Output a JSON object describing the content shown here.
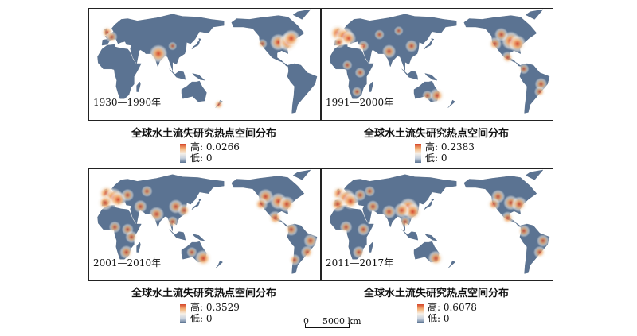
{
  "panels": [
    {
      "period": "1930—1990年",
      "title": "全球水土流失研究热点空间分布",
      "legend_high": "高: 0.0266",
      "legend_low": "低: 0",
      "hotspots": [
        {
          "lon": -2,
          "lat": 53,
          "v": 0.55
        },
        {
          "lon": 5,
          "lat": 47,
          "v": 0.45
        },
        {
          "lon": 78,
          "lat": 25,
          "v": 0.95
        },
        {
          "lon": -95,
          "lat": 40,
          "v": 0.85
        },
        {
          "lon": -80,
          "lat": 40,
          "v": 1.0
        },
        {
          "lon": -75,
          "lat": 45,
          "v": 0.9
        },
        {
          "lon": -120,
          "lat": 38,
          "v": 0.3
        },
        {
          "lon": 100,
          "lat": 35,
          "v": 0.2
        },
        {
          "lon": 172,
          "lat": -42,
          "v": 0.35
        }
      ]
    },
    {
      "period": "1991—2000年",
      "title": "全球水土流失研究热点空间分布",
      "legend_high": "高: 0.2383",
      "legend_low": "低: 0",
      "hotspots": [
        {
          "lon": -5,
          "lat": 52,
          "v": 0.9
        },
        {
          "lon": 5,
          "lat": 48,
          "v": 1.0
        },
        {
          "lon": 12,
          "lat": 45,
          "v": 0.7
        },
        {
          "lon": -3,
          "lat": 40,
          "v": 0.5
        },
        {
          "lon": 35,
          "lat": 35,
          "v": 0.4
        },
        {
          "lon": 75,
          "lat": 28,
          "v": 0.6
        },
        {
          "lon": 110,
          "lat": 35,
          "v": 0.5
        },
        {
          "lon": 30,
          "lat": 0,
          "v": 0.35
        },
        {
          "lon": 10,
          "lat": 10,
          "v": 0.3
        },
        {
          "lon": 25,
          "lat": -25,
          "v": 0.3
        },
        {
          "lon": 150,
          "lat": -30,
          "v": 0.7
        },
        {
          "lon": 135,
          "lat": -30,
          "v": 0.35
        },
        {
          "lon": -95,
          "lat": 42,
          "v": 1.0
        },
        {
          "lon": -85,
          "lat": 38,
          "v": 0.9
        },
        {
          "lon": -110,
          "lat": 50,
          "v": 0.6
        },
        {
          "lon": -120,
          "lat": 38,
          "v": 0.6
        },
        {
          "lon": -100,
          "lat": 20,
          "v": 0.5
        },
        {
          "lon": -75,
          "lat": 5,
          "v": 0.35
        },
        {
          "lon": -48,
          "lat": -15,
          "v": 0.5
        },
        {
          "lon": -50,
          "lat": -25,
          "v": 0.4
        },
        {
          "lon": 60,
          "lat": 50,
          "v": 0.3
        },
        {
          "lon": 90,
          "lat": 55,
          "v": 0.25
        }
      ]
    },
    {
      "period": "2001—2010年",
      "title": "全球水土流失研究热点空间分布",
      "legend_high": "高: 0.3529",
      "legend_low": "低: 0",
      "hotspots": [
        {
          "lon": -3,
          "lat": 52,
          "v": 0.85
        },
        {
          "lon": 8,
          "lat": 47,
          "v": 1.0
        },
        {
          "lon": 15,
          "lat": 44,
          "v": 0.85
        },
        {
          "lon": -5,
          "lat": 40,
          "v": 0.75
        },
        {
          "lon": 30,
          "lat": 50,
          "v": 0.5
        },
        {
          "lon": 50,
          "lat": 35,
          "v": 0.55
        },
        {
          "lon": 75,
          "lat": 25,
          "v": 0.7
        },
        {
          "lon": 105,
          "lat": 35,
          "v": 0.65
        },
        {
          "lon": 118,
          "lat": 30,
          "v": 0.55
        },
        {
          "lon": 100,
          "lat": 15,
          "v": 0.4
        },
        {
          "lon": 30,
          "lat": 5,
          "v": 0.45
        },
        {
          "lon": 36,
          "lat": -5,
          "v": 0.5
        },
        {
          "lon": 10,
          "lat": 8,
          "v": 0.45
        },
        {
          "lon": 28,
          "lat": -25,
          "v": 0.6
        },
        {
          "lon": 148,
          "lat": -33,
          "v": 0.85
        },
        {
          "lon": 130,
          "lat": -25,
          "v": 0.35
        },
        {
          "lon": -95,
          "lat": 42,
          "v": 0.85
        },
        {
          "lon": -82,
          "lat": 38,
          "v": 0.8
        },
        {
          "lon": -115,
          "lat": 48,
          "v": 0.75
        },
        {
          "lon": -122,
          "lat": 38,
          "v": 0.6
        },
        {
          "lon": -100,
          "lat": 20,
          "v": 0.65
        },
        {
          "lon": -75,
          "lat": 5,
          "v": 0.55
        },
        {
          "lon": -45,
          "lat": -10,
          "v": 0.6
        },
        {
          "lon": -50,
          "lat": -25,
          "v": 0.55
        },
        {
          "lon": -70,
          "lat": -35,
          "v": 0.45
        },
        {
          "lon": 60,
          "lat": 55,
          "v": 0.4
        }
      ]
    },
    {
      "period": "2011—2017年",
      "title": "全球水土流失研究热点空间分布",
      "legend_high": "高: 0.6078",
      "legend_low": "低: 0",
      "hotspots": [
        {
          "lon": -3,
          "lat": 52,
          "v": 0.75
        },
        {
          "lon": 8,
          "lat": 46,
          "v": 1.0
        },
        {
          "lon": 15,
          "lat": 42,
          "v": 0.85
        },
        {
          "lon": -5,
          "lat": 38,
          "v": 0.75
        },
        {
          "lon": 30,
          "lat": 50,
          "v": 0.45
        },
        {
          "lon": 50,
          "lat": 35,
          "v": 0.5
        },
        {
          "lon": 75,
          "lat": 28,
          "v": 0.6
        },
        {
          "lon": 105,
          "lat": 34,
          "v": 1.0
        },
        {
          "lon": 112,
          "lat": 28,
          "v": 0.9
        },
        {
          "lon": 95,
          "lat": 30,
          "v": 0.75
        },
        {
          "lon": 100,
          "lat": 15,
          "v": 0.4
        },
        {
          "lon": 35,
          "lat": 5,
          "v": 0.5
        },
        {
          "lon": 8,
          "lat": 8,
          "v": 0.5
        },
        {
          "lon": 28,
          "lat": -25,
          "v": 0.5
        },
        {
          "lon": 148,
          "lat": -33,
          "v": 0.75
        },
        {
          "lon": -95,
          "lat": 40,
          "v": 0.7
        },
        {
          "lon": -82,
          "lat": 38,
          "v": 0.75
        },
        {
          "lon": -115,
          "lat": 48,
          "v": 0.6
        },
        {
          "lon": -122,
          "lat": 38,
          "v": 0.55
        },
        {
          "lon": -100,
          "lat": 20,
          "v": 0.55
        },
        {
          "lon": -75,
          "lat": 3,
          "v": 0.5
        },
        {
          "lon": -45,
          "lat": -10,
          "v": 0.5
        },
        {
          "lon": -50,
          "lat": -25,
          "v": 0.5
        },
        {
          "lon": 45,
          "lat": 55,
          "v": 0.35
        }
      ]
    }
  ],
  "scale_bar": {
    "start": "0",
    "end": "5000 km"
  },
  "colors": {
    "ocean": "#ffffff",
    "land": "#5b7392",
    "hot": "#d6462a",
    "warm": "#f3b277",
    "cool": "#f7f1e8"
  }
}
